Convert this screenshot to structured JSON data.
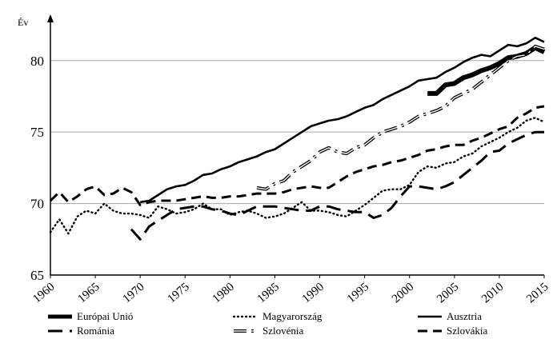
{
  "chart_data": {
    "type": "line",
    "ylabel": "Év",
    "xlim": [
      1960,
      2015
    ],
    "ylim": [
      65,
      82
    ],
    "yticks": [
      65,
      70,
      75,
      80
    ],
    "xticks": [
      1960,
      1965,
      1970,
      1975,
      1980,
      1985,
      1990,
      1995,
      2000,
      2005,
      2010,
      2015
    ],
    "grid": "horizontal",
    "legend_position": "bottom",
    "series": [
      {
        "name": "Európai Unió",
        "style": "thick-solid",
        "color": "#000000",
        "x": [
          2002,
          2003,
          2004,
          2005,
          2006,
          2007,
          2008,
          2009,
          2010,
          2011,
          2012,
          2013,
          2014,
          2015
        ],
        "y": [
          77.7,
          77.7,
          78.3,
          78.4,
          78.8,
          79.0,
          79.3,
          79.5,
          79.8,
          80.2,
          80.3,
          80.5,
          80.9,
          80.6
        ]
      },
      {
        "name": "Magyarország",
        "style": "dotted",
        "color": "#000000",
        "x": [
          1960,
          1961,
          1962,
          1963,
          1964,
          1965,
          1966,
          1967,
          1968,
          1969,
          1970,
          1971,
          1972,
          1973,
          1974,
          1975,
          1976,
          1977,
          1978,
          1979,
          1980,
          1981,
          1982,
          1983,
          1984,
          1985,
          1986,
          1987,
          1988,
          1989,
          1990,
          1991,
          1992,
          1993,
          1994,
          1995,
          1996,
          1997,
          1998,
          1999,
          2000,
          2001,
          2002,
          2003,
          2004,
          2005,
          2006,
          2007,
          2008,
          2009,
          2010,
          2011,
          2012,
          2013,
          2014,
          2015
        ],
        "y": [
          68.0,
          68.9,
          67.9,
          69.1,
          69.5,
          69.3,
          70.0,
          69.5,
          69.3,
          69.3,
          69.2,
          69.0,
          69.8,
          69.6,
          69.3,
          69.4,
          69.6,
          70.0,
          69.6,
          69.6,
          69.2,
          69.4,
          69.5,
          69.3,
          69.0,
          69.1,
          69.3,
          69.7,
          70.1,
          69.5,
          69.5,
          69.4,
          69.2,
          69.1,
          69.5,
          69.9,
          70.4,
          70.9,
          71.0,
          71.0,
          71.3,
          72.2,
          72.6,
          72.5,
          72.8,
          72.9,
          73.3,
          73.5,
          74.0,
          74.3,
          74.6,
          75.0,
          75.3,
          75.8,
          76.0,
          75.7
        ]
      },
      {
        "name": "Ausztria",
        "style": "solid",
        "color": "#000000",
        "x": [
          1970,
          1971,
          1972,
          1973,
          1974,
          1975,
          1976,
          1977,
          1978,
          1979,
          1980,
          1981,
          1982,
          1983,
          1984,
          1985,
          1986,
          1987,
          1988,
          1989,
          1990,
          1991,
          1992,
          1993,
          1994,
          1995,
          1996,
          1997,
          1998,
          1999,
          2000,
          2001,
          2002,
          2003,
          2004,
          2005,
          2006,
          2007,
          2008,
          2009,
          2010,
          2011,
          2012,
          2013,
          2014,
          2015
        ],
        "y": [
          70.1,
          70.2,
          70.6,
          71.0,
          71.2,
          71.3,
          71.6,
          72.0,
          72.1,
          72.4,
          72.6,
          72.9,
          73.1,
          73.3,
          73.6,
          73.8,
          74.2,
          74.6,
          75.0,
          75.4,
          75.6,
          75.8,
          75.9,
          76.1,
          76.4,
          76.7,
          76.9,
          77.3,
          77.6,
          77.9,
          78.2,
          78.6,
          78.7,
          78.8,
          79.2,
          79.5,
          79.9,
          80.2,
          80.4,
          80.3,
          80.7,
          81.1,
          81.0,
          81.2,
          81.6,
          81.3
        ]
      },
      {
        "name": "Románia",
        "style": "long-dash",
        "color": "#000000",
        "x": [
          1969,
          1970,
          1971,
          1972,
          1973,
          1974,
          1975,
          1976,
          1977,
          1978,
          1979,
          1980,
          1981,
          1982,
          1983,
          1984,
          1985,
          1986,
          1987,
          1988,
          1989,
          1990,
          1991,
          1992,
          1993,
          1994,
          1995,
          1996,
          1997,
          1998,
          1999,
          2000,
          2001,
          2002,
          2003,
          2004,
          2005,
          2006,
          2007,
          2008,
          2009,
          2010,
          2011,
          2012,
          2013,
          2014,
          2015
        ],
        "y": [
          68.2,
          67.5,
          68.4,
          68.8,
          69.2,
          69.6,
          69.7,
          69.8,
          69.8,
          69.6,
          69.5,
          69.3,
          69.2,
          69.5,
          69.8,
          69.8,
          69.8,
          69.7,
          69.6,
          69.5,
          69.5,
          69.8,
          69.8,
          69.6,
          69.5,
          69.4,
          69.4,
          69.0,
          69.2,
          69.7,
          70.5,
          71.2,
          71.2,
          71.1,
          71.0,
          71.2,
          71.5,
          72.0,
          72.5,
          73.0,
          73.6,
          73.7,
          74.2,
          74.5,
          74.8,
          75.0,
          75.0
        ]
      },
      {
        "name": "Szlovénia",
        "style": "double-dash-dot",
        "color": "#000000",
        "x": [
          1983,
          1984,
          1985,
          1986,
          1987,
          1988,
          1989,
          1990,
          1991,
          1992,
          1993,
          1994,
          1995,
          1996,
          1997,
          1998,
          1999,
          2000,
          2001,
          2002,
          2003,
          2004,
          2005,
          2006,
          2007,
          2008,
          2009,
          2010,
          2011,
          2012,
          2013,
          2014,
          2015
        ],
        "y": [
          71.1,
          71.0,
          71.4,
          71.6,
          72.2,
          72.6,
          73.0,
          73.6,
          73.9,
          73.6,
          73.5,
          73.9,
          74.1,
          74.6,
          75.0,
          75.2,
          75.4,
          75.7,
          76.1,
          76.3,
          76.5,
          76.8,
          77.4,
          77.7,
          78.0,
          78.5,
          79.0,
          79.5,
          80.0,
          80.3,
          80.4,
          81.0,
          80.8
        ]
      },
      {
        "name": "Szlovákia",
        "style": "dashed",
        "color": "#000000",
        "x": [
          1960,
          1961,
          1962,
          1963,
          1964,
          1965,
          1966,
          1967,
          1968,
          1969,
          1970,
          1971,
          1972,
          1973,
          1974,
          1975,
          1976,
          1977,
          1978,
          1979,
          1980,
          1981,
          1982,
          1983,
          1984,
          1985,
          1986,
          1987,
          1988,
          1989,
          1990,
          1991,
          1992,
          1993,
          1994,
          1995,
          1996,
          1997,
          1998,
          1999,
          2000,
          2001,
          2002,
          2003,
          2004,
          2005,
          2006,
          2007,
          2008,
          2009,
          2010,
          2011,
          2012,
          2013,
          2014,
          2015
        ],
        "y": [
          70.2,
          70.8,
          70.1,
          70.5,
          71.0,
          71.2,
          70.6,
          70.7,
          71.1,
          70.8,
          69.9,
          70.1,
          70.2,
          70.2,
          70.2,
          70.3,
          70.4,
          70.5,
          70.4,
          70.4,
          70.5,
          70.5,
          70.6,
          70.7,
          70.7,
          70.7,
          70.8,
          71.0,
          71.1,
          71.2,
          71.1,
          71.1,
          71.5,
          71.9,
          72.2,
          72.4,
          72.6,
          72.7,
          72.9,
          73.0,
          73.2,
          73.4,
          73.7,
          73.8,
          74.0,
          74.1,
          74.1,
          74.4,
          74.6,
          74.9,
          75.2,
          75.4,
          76.0,
          76.3,
          76.7,
          76.8
        ]
      }
    ]
  }
}
